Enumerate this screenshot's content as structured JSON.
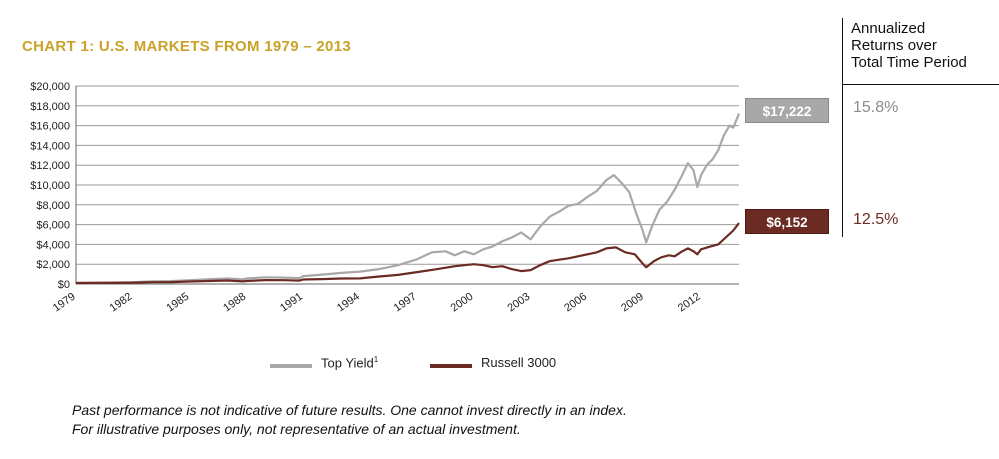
{
  "title": "CHART 1: U.S. MARKETS FROM 1979 – 2013",
  "side_header": "Annualized\nReturns over\nTotal Time Period",
  "badges": {
    "top_yield": "$17,222",
    "russell": "$6,152"
  },
  "returns": {
    "top_yield": "15.8%",
    "russell": "12.5%"
  },
  "legend": {
    "top_yield": "Top Yield",
    "top_yield_sup": "1",
    "russell": "Russell 3000"
  },
  "footnote": "Past performance is not indicative of future results. One cannot invest directly in an index.\nFor illustrative purposes only, not representative of an actual investment.",
  "colors": {
    "top_yield": "#a8a8a8",
    "russell": "#6b2a22",
    "title": "#c9a227",
    "grid": "#9a9a9a"
  },
  "chart_data": {
    "type": "line",
    "title": "CHART 1: U.S. MARKETS FROM 1979 – 2013",
    "xlabel": "",
    "ylabel": "",
    "xlim": [
      1979,
      2014
    ],
    "ylim": [
      0,
      20000
    ],
    "x_ticks": [
      "1979",
      "1982",
      "1985",
      "1988",
      "1991",
      "1994",
      "1997",
      "2000",
      "2003",
      "2006",
      "2009",
      "2012"
    ],
    "y_ticks": [
      "$0",
      "$2,000",
      "$4,000",
      "$6,000",
      "$8,000",
      "$10,000",
      "$12,000",
      "$14,000",
      "$16,000",
      "$18,000",
      "$20,000"
    ],
    "grid": true,
    "legend_position": "bottom",
    "series": [
      {
        "name": "Top Yield",
        "color": "#a8a8a8",
        "points": [
          [
            1979,
            100
          ],
          [
            1980,
            130
          ],
          [
            1981,
            155
          ],
          [
            1982,
            185
          ],
          [
            1983,
            260
          ],
          [
            1984,
            290
          ],
          [
            1985,
            380
          ],
          [
            1986,
            480
          ],
          [
            1987,
            560
          ],
          [
            1987.8,
            470
          ],
          [
            1988,
            560
          ],
          [
            1989,
            680
          ],
          [
            1990,
            650
          ],
          [
            1990.8,
            600
          ],
          [
            1991,
            800
          ],
          [
            1992,
            950
          ],
          [
            1993,
            1120
          ],
          [
            1994,
            1250
          ],
          [
            1995,
            1500
          ],
          [
            1996,
            1900
          ],
          [
            1997,
            2500
          ],
          [
            1997.8,
            3200
          ],
          [
            1998.5,
            3300
          ],
          [
            1999,
            2900
          ],
          [
            1999.5,
            3300
          ],
          [
            2000,
            3000
          ],
          [
            2000.5,
            3500
          ],
          [
            2001,
            3800
          ],
          [
            2001.5,
            4300
          ],
          [
            2002,
            4700
          ],
          [
            2002.5,
            5200
          ],
          [
            2003,
            4500
          ],
          [
            2003.5,
            5800
          ],
          [
            2004,
            6800
          ],
          [
            2004.5,
            7300
          ],
          [
            2005,
            7900
          ],
          [
            2005.5,
            8100
          ],
          [
            2006,
            8800
          ],
          [
            2006.5,
            9400
          ],
          [
            2007,
            10500
          ],
          [
            2007.4,
            11000
          ],
          [
            2007.8,
            10200
          ],
          [
            2008.2,
            9300
          ],
          [
            2008.6,
            7000
          ],
          [
            2008.9,
            5500
          ],
          [
            2009.1,
            4200
          ],
          [
            2009.4,
            5800
          ],
          [
            2009.8,
            7500
          ],
          [
            2010.2,
            8300
          ],
          [
            2010.6,
            9500
          ],
          [
            2011,
            11000
          ],
          [
            2011.3,
            12200
          ],
          [
            2011.6,
            11500
          ],
          [
            2011.8,
            9800
          ],
          [
            2012,
            11000
          ],
          [
            2012.3,
            12000
          ],
          [
            2012.6,
            12600
          ],
          [
            2012.9,
            13500
          ],
          [
            2013.2,
            15000
          ],
          [
            2013.5,
            16000
          ],
          [
            2013.7,
            15800
          ],
          [
            2014,
            17222
          ]
        ]
      },
      {
        "name": "Russell 3000",
        "color": "#6b2a22",
        "points": [
          [
            1979,
            100
          ],
          [
            1980,
            120
          ],
          [
            1981,
            115
          ],
          [
            1982,
            140
          ],
          [
            1983,
            180
          ],
          [
            1984,
            190
          ],
          [
            1985,
            250
          ],
          [
            1986,
            300
          ],
          [
            1987,
            350
          ],
          [
            1987.8,
            260
          ],
          [
            1988,
            300
          ],
          [
            1989,
            390
          ],
          [
            1990,
            380
          ],
          [
            1990.8,
            340
          ],
          [
            1991,
            450
          ],
          [
            1992,
            500
          ],
          [
            1993,
            560
          ],
          [
            1994,
            570
          ],
          [
            1995,
            760
          ],
          [
            1996,
            920
          ],
          [
            1997,
            1200
          ],
          [
            1998,
            1480
          ],
          [
            1999,
            1800
          ],
          [
            1999.5,
            1900
          ],
          [
            2000,
            2000
          ],
          [
            2000.5,
            1900
          ],
          [
            2001,
            1700
          ],
          [
            2001.5,
            1800
          ],
          [
            2002,
            1500
          ],
          [
            2002.5,
            1300
          ],
          [
            2003,
            1400
          ],
          [
            2003.5,
            1900
          ],
          [
            2004,
            2300
          ],
          [
            2004.5,
            2450
          ],
          [
            2005,
            2600
          ],
          [
            2005.5,
            2800
          ],
          [
            2006,
            3000
          ],
          [
            2006.5,
            3200
          ],
          [
            2007,
            3600
          ],
          [
            2007.5,
            3700
          ],
          [
            2008,
            3200
          ],
          [
            2008.5,
            3000
          ],
          [
            2008.9,
            2100
          ],
          [
            2009.1,
            1700
          ],
          [
            2009.5,
            2300
          ],
          [
            2009.9,
            2700
          ],
          [
            2010.3,
            2900
          ],
          [
            2010.6,
            2800
          ],
          [
            2011,
            3300
          ],
          [
            2011.3,
            3600
          ],
          [
            2011.6,
            3300
          ],
          [
            2011.8,
            3000
          ],
          [
            2012,
            3500
          ],
          [
            2012.5,
            3800
          ],
          [
            2012.9,
            4000
          ],
          [
            2013.3,
            4700
          ],
          [
            2013.7,
            5400
          ],
          [
            2014,
            6152
          ]
        ]
      }
    ]
  }
}
